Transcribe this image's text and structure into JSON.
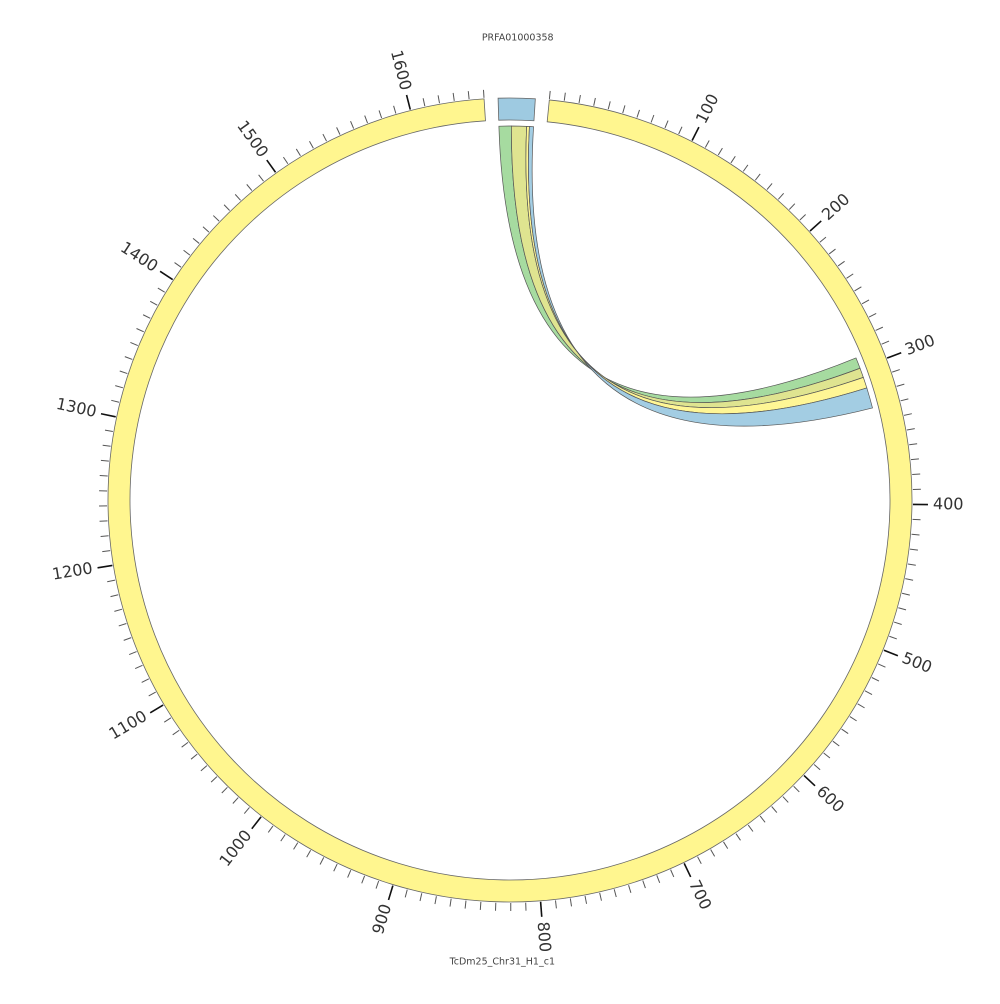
{
  "chart_data": {
    "type": "chord",
    "segments": [
      {
        "name": "PRFA01000358",
        "length": 25,
        "color": "#9ecae1"
      },
      {
        "name": "TcDm25_Chr31_H1_c1",
        "length": 1650,
        "color": "#fff68f",
        "major_ticks": [
          100,
          200,
          300,
          400,
          500,
          600,
          700,
          800,
          900,
          1000,
          1100,
          1200,
          1300,
          1400,
          1500,
          1600
        ],
        "minor_tick_step": 10
      }
    ],
    "links": [
      {
        "source": [
          0,
          9
        ],
        "target": [
          292,
          300
        ],
        "color": "#a1d99b"
      },
      {
        "source": [
          9,
          20
        ],
        "target": [
          300,
          307
        ],
        "color": "#dde38a"
      },
      {
        "source": [
          20,
          22
        ],
        "target": [
          307,
          315
        ],
        "color": "#fff68f"
      },
      {
        "source": [
          22,
          25
        ],
        "target": [
          315,
          330
        ],
        "color": "#9ecae1"
      }
    ]
  }
}
